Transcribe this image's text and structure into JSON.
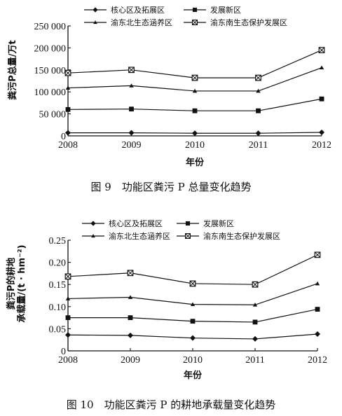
{
  "figures": [
    {
      "caption": "图 9　功能区粪污 P 总量变化趋势",
      "chart_data": {
        "type": "line",
        "title": "",
        "xlabel": "年份",
        "ylabel": "粪污P总量/万t",
        "x": [
          2008,
          2009,
          2010,
          2011,
          2012
        ],
        "x_tick_labels": [
          "2008",
          "2009",
          "2010",
          "2011",
          "2012"
        ],
        "ylim": [
          0,
          250000
        ],
        "y_ticks": [
          0,
          50000,
          100000,
          150000,
          200000,
          250000
        ],
        "y_tick_labels": [
          "0",
          "50 000",
          "100 000",
          "150 000",
          "200 000",
          "250 000"
        ],
        "grid": false,
        "legend_position": "top",
        "series": [
          {
            "name": "核心区及拓展区",
            "marker": "diamond",
            "values": [
              7000,
              7000,
              6000,
              6000,
              8000
            ]
          },
          {
            "name": "发展新区",
            "marker": "square",
            "values": [
              60000,
              61000,
              57000,
              57000,
              84000
            ]
          },
          {
            "name": "渝东北生态涵养区",
            "marker": "triangle",
            "values": [
              109000,
              114000,
              102000,
              102000,
              155000
            ]
          },
          {
            "name": "渝东南生态保护发展区",
            "marker": "square-x",
            "values": [
              143000,
              150000,
              132000,
              132000,
              195000
            ]
          }
        ]
      }
    },
    {
      "caption": "图 10　功能区粪污 P 的耕地承载量变化趋势",
      "chart_data": {
        "type": "line",
        "title": "",
        "xlabel": "年份",
        "ylabel": "粪污P的耕地承载量/(t · hm⁻²)",
        "ylabel_lines": [
          "粪污P的耕地",
          "承载量/(t · hm⁻²)"
        ],
        "x": [
          2008,
          2009,
          2010,
          2011,
          2012
        ],
        "x_tick_labels": [
          "2008",
          "2009",
          "2010",
          "2011",
          "2012"
        ],
        "ylim": [
          0,
          0.25
        ],
        "y_ticks": [
          0,
          0.05,
          0.1,
          0.15,
          0.2,
          0.25
        ],
        "y_tick_labels": [
          "0",
          "0.05",
          "0.10",
          "0.15",
          "0.20",
          "0.25"
        ],
        "grid": false,
        "legend_position": "top",
        "series": [
          {
            "name": "核心区及拓展区",
            "marker": "diamond",
            "values": [
              0.036,
              0.035,
              0.029,
              0.027,
              0.038
            ]
          },
          {
            "name": "发展新区",
            "marker": "square",
            "values": [
              0.075,
              0.075,
              0.067,
              0.065,
              0.094
            ]
          },
          {
            "name": "渝东北生态涵养区",
            "marker": "triangle",
            "values": [
              0.118,
              0.121,
              0.105,
              0.104,
              0.152
            ]
          },
          {
            "name": "渝东南生态保护发展区",
            "marker": "square-x",
            "values": [
              0.168,
              0.176,
              0.152,
              0.15,
              0.217
            ]
          }
        ]
      }
    }
  ]
}
